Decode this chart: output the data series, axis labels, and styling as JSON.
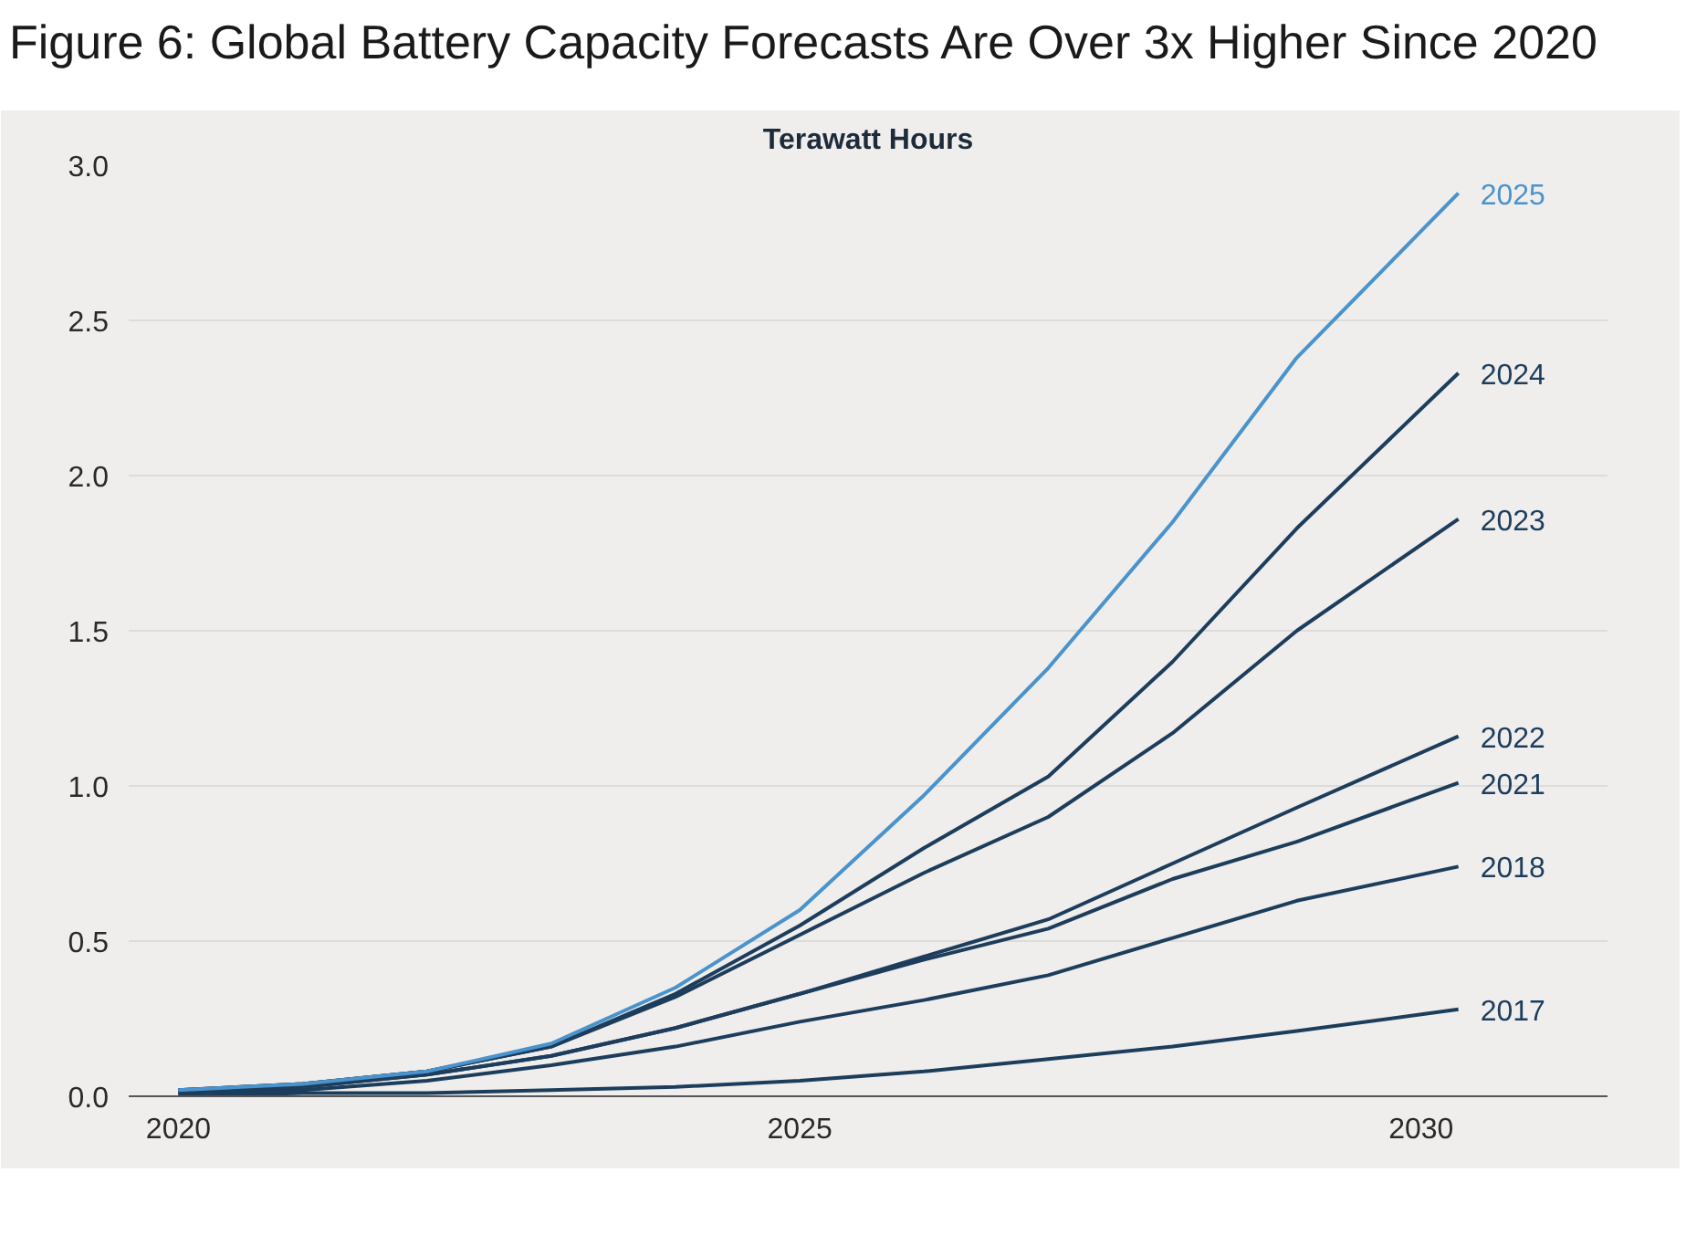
{
  "chart_data": {
    "type": "line",
    "title": "Figure 6: Global Battery Capacity Forecasts Are Over 3x Higher Since 2020",
    "subtitle": "Terawatt Hours",
    "x": [
      2020,
      2021,
      2022,
      2023,
      2024,
      2025,
      2026,
      2027,
      2028,
      2029,
      2030.3
    ],
    "series": [
      {
        "name": "2017",
        "color": "#1d3d5c",
        "values": [
          0.0,
          0.01,
          0.01,
          0.02,
          0.03,
          0.05,
          0.08,
          0.12,
          0.16,
          0.21,
          0.28
        ]
      },
      {
        "name": "2018",
        "color": "#1d3d5c",
        "values": [
          0.01,
          0.02,
          0.05,
          0.1,
          0.16,
          0.24,
          0.31,
          0.39,
          0.51,
          0.63,
          0.74
        ]
      },
      {
        "name": "2021",
        "color": "#1d3d5c",
        "values": [
          0.01,
          0.03,
          0.07,
          0.13,
          0.22,
          0.33,
          0.44,
          0.54,
          0.7,
          0.82,
          1.01
        ]
      },
      {
        "name": "2022",
        "color": "#1d3d5c",
        "values": [
          0.01,
          0.03,
          0.07,
          0.13,
          0.22,
          0.33,
          0.45,
          0.57,
          0.75,
          0.93,
          1.16
        ]
      },
      {
        "name": "2023",
        "color": "#1d3d5c",
        "values": [
          0.02,
          0.04,
          0.08,
          0.16,
          0.32,
          0.52,
          0.72,
          0.9,
          1.17,
          1.5,
          1.86
        ]
      },
      {
        "name": "2024",
        "color": "#1d3d5c",
        "values": [
          0.02,
          0.04,
          0.08,
          0.16,
          0.33,
          0.55,
          0.8,
          1.03,
          1.4,
          1.83,
          2.33
        ]
      },
      {
        "name": "2025",
        "color": "#4a93cc",
        "values": [
          0.02,
          0.04,
          0.08,
          0.17,
          0.35,
          0.6,
          0.97,
          1.38,
          1.85,
          2.38,
          2.91
        ]
      }
    ],
    "xlim": [
      2019.6,
      2031.5
    ],
    "ylim": [
      0,
      3.0
    ],
    "xticks": [
      2020,
      2025,
      2030
    ],
    "yticks": [
      {
        "value": 0,
        "label": "0.0"
      },
      0.5,
      {
        "value": 1,
        "label": "1.0"
      },
      1.5,
      {
        "value": 2,
        "label": "2.0"
      },
      2.5,
      {
        "value": 3,
        "label": "3.0"
      }
    ],
    "grid": "y",
    "marker": "none",
    "line_style": "solid"
  }
}
